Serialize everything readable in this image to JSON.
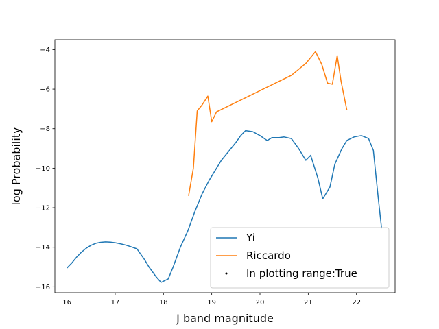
{
  "chart_data": {
    "type": "line",
    "xlabel": "J band magnitude",
    "ylabel": "log Probability",
    "xlim": [
      15.75,
      22.8
    ],
    "ylim": [
      -16.3,
      -3.5
    ],
    "xticks": [
      16,
      17,
      18,
      19,
      20,
      21,
      22
    ],
    "yticks": [
      -16,
      -14,
      -12,
      -10,
      -8,
      -6,
      -4
    ],
    "grid": false,
    "legend_position": "lower-right",
    "series": [
      {
        "name": "Yi",
        "color": "#1f77b4",
        "x": [
          16.0,
          16.1,
          16.2,
          16.3,
          16.4,
          16.5,
          16.6,
          16.7,
          16.8,
          16.9,
          17.0,
          17.1,
          17.2,
          17.3,
          17.45,
          17.6,
          17.7,
          17.85,
          17.95,
          18.1,
          18.2,
          18.35,
          18.5,
          18.65,
          18.8,
          18.95,
          19.1,
          19.2,
          19.35,
          19.5,
          19.6,
          19.7,
          19.85,
          20.0,
          20.15,
          20.25,
          20.4,
          20.5,
          20.65,
          20.8,
          20.95,
          21.05,
          21.2,
          21.3,
          21.45,
          21.55,
          21.7,
          21.8,
          21.95,
          22.1,
          22.25,
          22.35,
          22.45,
          22.52
        ],
        "y": [
          -15.05,
          -14.8,
          -14.5,
          -14.25,
          -14.05,
          -13.9,
          -13.8,
          -13.75,
          -13.73,
          -13.74,
          -13.77,
          -13.82,
          -13.88,
          -13.95,
          -14.08,
          -14.6,
          -15.0,
          -15.5,
          -15.78,
          -15.6,
          -15.0,
          -14.0,
          -13.2,
          -12.2,
          -11.3,
          -10.6,
          -10.0,
          -9.6,
          -9.15,
          -8.7,
          -8.35,
          -8.1,
          -8.15,
          -8.35,
          -8.6,
          -8.45,
          -8.45,
          -8.42,
          -8.5,
          -9.0,
          -9.6,
          -9.35,
          -10.5,
          -11.55,
          -10.95,
          -9.8,
          -9.0,
          -8.6,
          -8.42,
          -8.35,
          -8.5,
          -9.1,
          -11.5,
          -13.05
        ]
      },
      {
        "name": "Riccardo",
        "color": "#ff7f0e",
        "x": [
          18.52,
          18.62,
          18.7,
          18.8,
          18.92,
          19.0,
          19.1,
          20.65,
          20.95,
          21.15,
          21.28,
          21.4,
          21.5,
          21.6,
          21.68,
          21.8
        ],
        "y": [
          -11.4,
          -10.0,
          -7.1,
          -6.8,
          -6.35,
          -7.65,
          -7.15,
          -5.3,
          -4.7,
          -4.1,
          -4.75,
          -5.7,
          -5.75,
          -4.3,
          -5.6,
          -7.05
        ]
      }
    ],
    "legend": [
      {
        "label": "Yi",
        "marker": "line",
        "color": "#1f77b4"
      },
      {
        "label": "Riccardo",
        "marker": "line",
        "color": "#ff7f0e"
      },
      {
        "label": "In plotting range:True",
        "marker": "point",
        "color": "#000000"
      }
    ]
  }
}
